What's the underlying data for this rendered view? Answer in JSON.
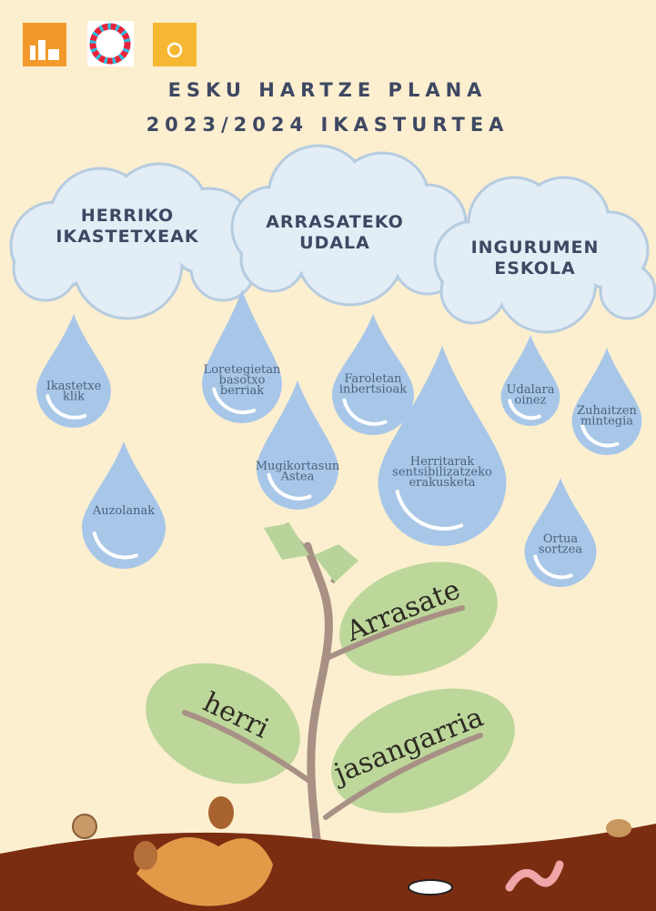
{
  "header": {
    "title_lines": [
      "ESKU HARTZE PLANA",
      "2023/2024 IKASTURTEA"
    ]
  },
  "clouds": [
    {
      "lines": [
        "HERRIKO",
        "IKASTETXEAK"
      ]
    },
    {
      "lines": [
        "ARRASATEKO",
        "UDALA"
      ]
    },
    {
      "lines": [
        "INGURUMEN",
        "ESKOLA"
      ]
    }
  ],
  "drops": [
    {
      "lines": [
        "Ikastetxe",
        "klik"
      ]
    },
    {
      "lines": [
        "Loretegietan",
        "basotxo",
        "berriak"
      ]
    },
    {
      "lines": [
        "Faroletan",
        "inbertsioak"
      ]
    },
    {
      "lines": [
        "Udalara",
        "oinez"
      ]
    },
    {
      "lines": [
        "Zuhaitzen",
        "mintegia"
      ]
    },
    {
      "lines": [
        "Mugikortasun",
        "Astea"
      ]
    },
    {
      "lines": [
        "Herritarak",
        "sentsibilizatzeko",
        "erakusketa"
      ]
    },
    {
      "lines": [
        "Auzolanak"
      ]
    },
    {
      "lines": [
        "Ortua",
        "sortzea"
      ]
    }
  ],
  "leaves": [
    {
      "label": "Arrasate"
    },
    {
      "label": "herri"
    },
    {
      "label": "jasangarria"
    }
  ]
}
